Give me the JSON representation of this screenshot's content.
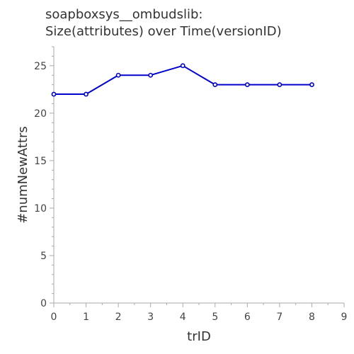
{
  "chart_data": {
    "type": "line",
    "title": [
      "soapboxsys__ombudslib:",
      "Size(attributes) over Time(versionID)"
    ],
    "xlabel": "trID",
    "ylabel": "#numNewAttrs",
    "xlim": [
      0,
      9
    ],
    "ylim": [
      0,
      27
    ],
    "xticks": [
      0,
      1,
      2,
      3,
      4,
      5,
      6,
      7,
      8,
      9
    ],
    "yticks": [
      0,
      5,
      10,
      15,
      20,
      25
    ],
    "grid": false,
    "legend": "none",
    "series": [
      {
        "color": "#0000cc",
        "x": [
          0,
          1,
          2,
          3,
          4,
          5,
          6,
          7,
          8
        ],
        "y": [
          22,
          22,
          24,
          24,
          25,
          23,
          23,
          23,
          23
        ]
      }
    ]
  }
}
